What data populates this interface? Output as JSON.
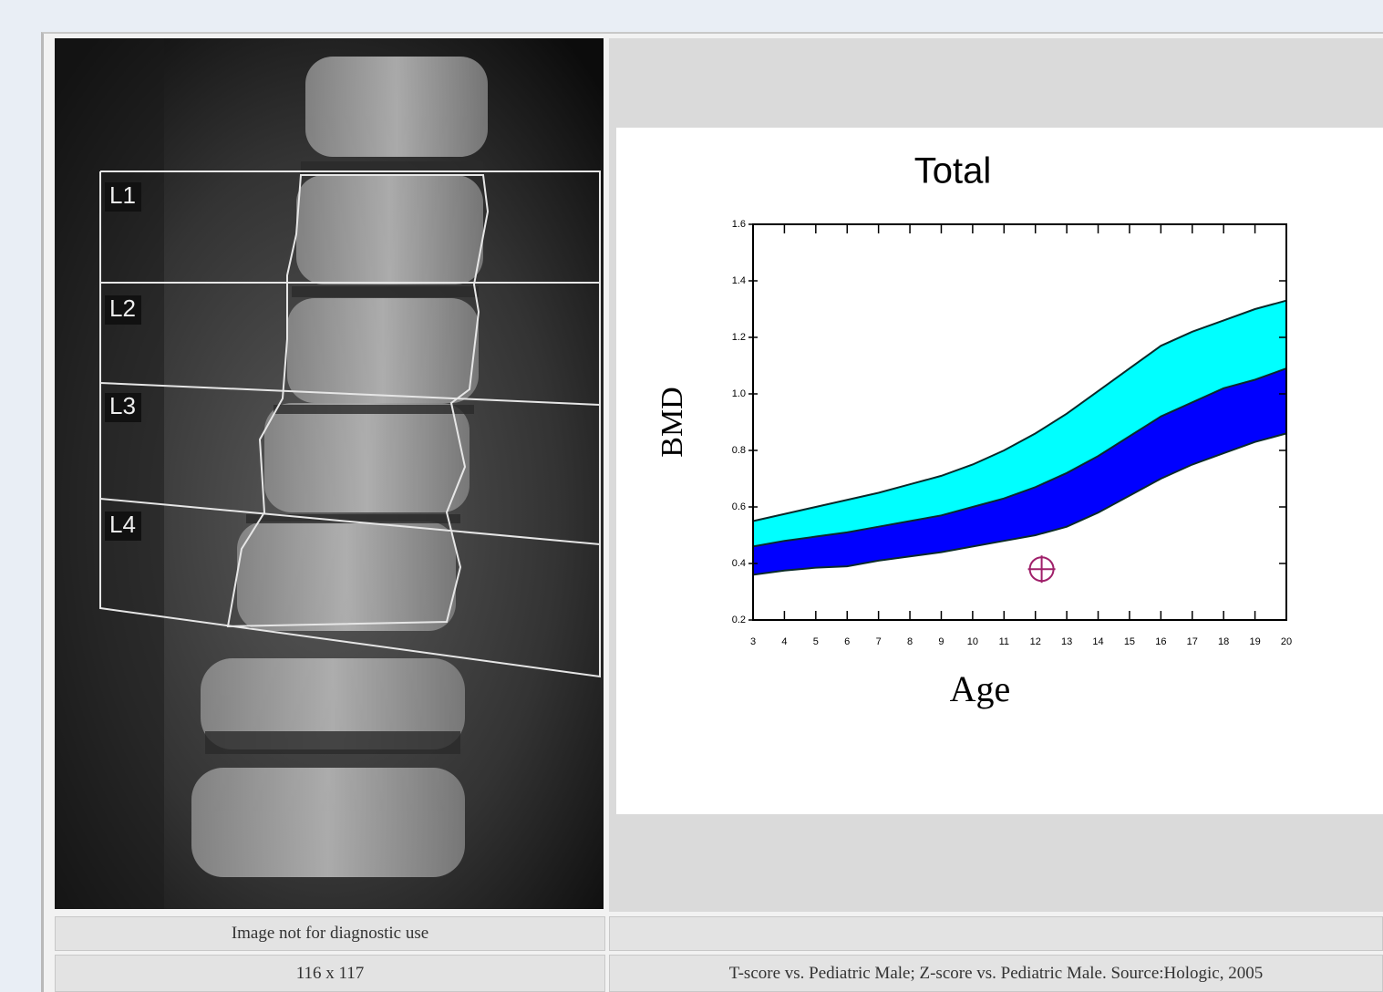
{
  "image": {
    "labels": [
      "L1",
      "L2",
      "L3",
      "L4"
    ]
  },
  "chart_data": {
    "type": "band",
    "title": "Total",
    "x_label": "Age",
    "y_label": "BMD",
    "x": [
      3,
      4,
      5,
      6,
      7,
      8,
      9,
      10,
      11,
      12,
      13,
      14,
      15,
      16,
      17,
      18,
      19,
      20
    ],
    "series": [
      {
        "color": "#00ffff",
        "values": [
          0.55,
          0.575,
          0.6,
          0.625,
          0.65,
          0.68,
          0.71,
          0.75,
          0.8,
          0.86,
          0.93,
          1.01,
          1.09,
          1.17,
          1.22,
          1.26,
          1.3,
          1.33
        ]
      },
      {
        "color": "#0000ff",
        "values": [
          0.46,
          0.48,
          0.495,
          0.51,
          0.53,
          0.55,
          0.57,
          0.6,
          0.63,
          0.67,
          0.72,
          0.78,
          0.85,
          0.92,
          0.97,
          1.02,
          1.05,
          1.09
        ]
      },
      {
        "color": "#000000",
        "values": [
          0.36,
          0.375,
          0.385,
          0.39,
          0.41,
          0.425,
          0.44,
          0.46,
          0.48,
          0.5,
          0.53,
          0.58,
          0.64,
          0.7,
          0.75,
          0.79,
          0.83,
          0.86
        ]
      }
    ],
    "marker": {
      "x": 12.2,
      "y": 0.38,
      "color": "#a0206a"
    },
    "xlim": [
      3,
      20
    ],
    "ylim": [
      0.2,
      1.6
    ],
    "xticks": [
      3,
      4,
      5,
      6,
      7,
      8,
      9,
      10,
      11,
      12,
      13,
      14,
      15,
      16,
      17,
      18,
      19,
      20
    ],
    "yticks": [
      0.2,
      0.4,
      0.6,
      0.8,
      {
        "value": 1,
        "label": "1.0"
      },
      1.2,
      1.4,
      1.6
    ]
  },
  "footer": {
    "left_note": "Image not for diagnostic use",
    "left_size": "116 x 117",
    "right_note": "T-score vs. Pediatric Male; Z-score vs. Pediatric Male. Source:Hologic, 2005"
  }
}
